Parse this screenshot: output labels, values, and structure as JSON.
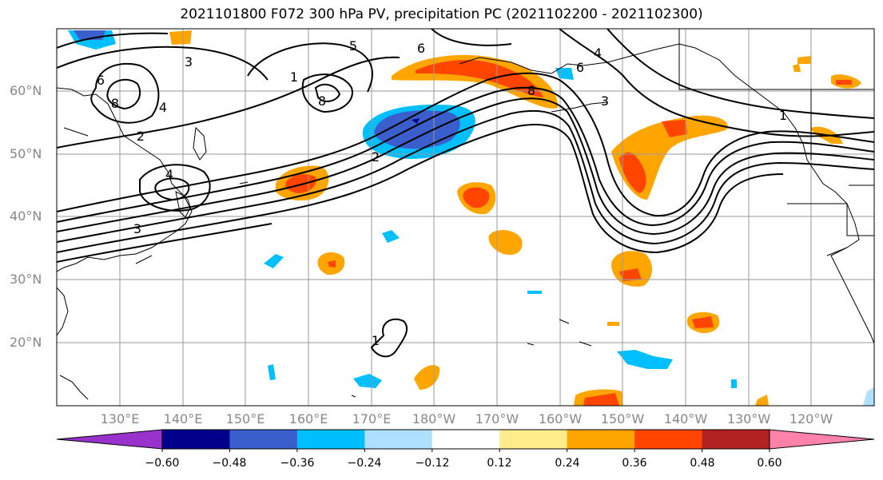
{
  "title": "2021101800 F072 300 hPa PV, precipitation PC (2021102200 - 2021102300)",
  "lat_labels": [
    "60°N",
    "50°N",
    "40°N",
    "30°N",
    "20°N"
  ],
  "lon_labels": [
    "130°E",
    "140°E",
    "150°E",
    "160°E",
    "170°E",
    "180°W",
    "170°W",
    "160°W",
    "150°W",
    "140°W",
    "130°W",
    "120°W"
  ],
  "colorbar": {
    "ticks": [
      "−0.60",
      "−0.48",
      "−0.36",
      "−0.24",
      "−0.12",
      "0.12",
      "0.24",
      "0.36",
      "0.48",
      "0.60"
    ],
    "colors": [
      "#9932cc",
      "#00008b",
      "#3a5fcd",
      "#00bfff",
      "#b0e0ff",
      "#ffffff",
      "#ffec8b",
      "#ffa500",
      "#ff4500",
      "#b22222",
      "#ff82ab"
    ]
  },
  "contour_labels": [
    "3",
    "6",
    "8",
    "2",
    "4",
    "5",
    "6",
    "1",
    "8",
    "6",
    "4",
    "3",
    "2",
    "4",
    "3",
    "8",
    "1",
    "1"
  ]
}
